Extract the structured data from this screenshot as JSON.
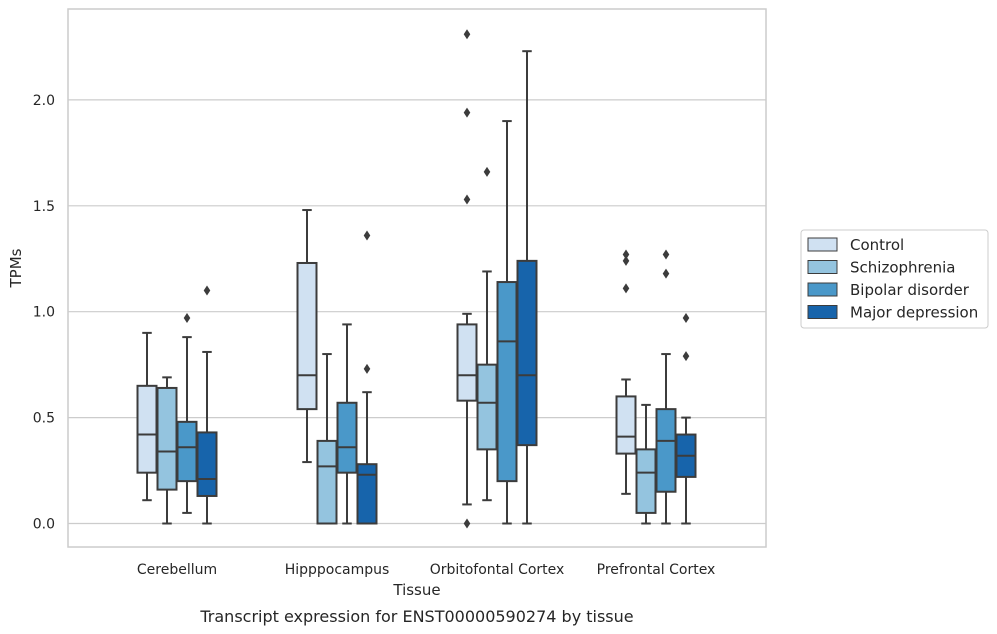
{
  "chart_data": {
    "type": "boxplot",
    "title": "",
    "caption": "Transcript expression for ENST00000590274 by tissue",
    "xlabel": "Tissue",
    "ylabel": "TPMs",
    "ylim": [
      -0.11,
      2.43
    ],
    "yticks": [
      0.0,
      0.5,
      1.0,
      1.5,
      2.0
    ],
    "ytick_labels": [
      "0.0",
      "0.5",
      "1.0",
      "1.5",
      "2.0"
    ],
    "grid": "horizontal",
    "legend_position": "right",
    "categories": [
      "Cerebellum",
      "Hipppocampus",
      "Orbitofontal Cortex",
      "Prefrontal Cortex"
    ],
    "series": [
      {
        "name": "Control",
        "color": "#d0e1f2",
        "boxes": [
          {
            "q1": 0.24,
            "median": 0.42,
            "q3": 0.65,
            "whisker_low": 0.11,
            "whisker_high": 0.9,
            "outliers": []
          },
          {
            "q1": 0.54,
            "median": 0.7,
            "q3": 1.23,
            "whisker_low": 0.29,
            "whisker_high": 1.48,
            "outliers": []
          },
          {
            "q1": 0.58,
            "median": 0.7,
            "q3": 0.94,
            "whisker_low": 0.09,
            "whisker_high": 0.99,
            "outliers": [
              0.0,
              1.53,
              1.94,
              2.31
            ]
          },
          {
            "q1": 0.33,
            "median": 0.41,
            "q3": 0.6,
            "whisker_low": 0.14,
            "whisker_high": 0.68,
            "outliers": [
              1.11,
              1.24,
              1.27
            ]
          }
        ]
      },
      {
        "name": "Schizophrenia",
        "color": "#94c4df",
        "boxes": [
          {
            "q1": 0.16,
            "median": 0.34,
            "q3": 0.64,
            "whisker_low": 0.0,
            "whisker_high": 0.69,
            "outliers": []
          },
          {
            "q1": 0.0,
            "median": 0.27,
            "q3": 0.39,
            "whisker_low": 0.0,
            "whisker_high": 0.8,
            "outliers": []
          },
          {
            "q1": 0.35,
            "median": 0.57,
            "q3": 0.75,
            "whisker_low": 0.11,
            "whisker_high": 1.19,
            "outliers": [
              1.66
            ]
          },
          {
            "q1": 0.05,
            "median": 0.24,
            "q3": 0.35,
            "whisker_low": 0.0,
            "whisker_high": 0.56,
            "outliers": []
          }
        ]
      },
      {
        "name": "Bipolar disorder",
        "color": "#4a98c9",
        "boxes": [
          {
            "q1": 0.2,
            "median": 0.36,
            "q3": 0.48,
            "whisker_low": 0.05,
            "whisker_high": 0.88,
            "outliers": [
              0.97
            ]
          },
          {
            "q1": 0.24,
            "median": 0.36,
            "q3": 0.57,
            "whisker_low": 0.0,
            "whisker_high": 0.94,
            "outliers": []
          },
          {
            "q1": 0.2,
            "median": 0.86,
            "q3": 1.14,
            "whisker_low": 0.0,
            "whisker_high": 1.9,
            "outliers": []
          },
          {
            "q1": 0.15,
            "median": 0.39,
            "q3": 0.54,
            "whisker_low": 0.0,
            "whisker_high": 0.8,
            "outliers": [
              1.18,
              1.27
            ]
          }
        ]
      },
      {
        "name": "Major depression",
        "color": "#1764ab",
        "boxes": [
          {
            "q1": 0.13,
            "median": 0.21,
            "q3": 0.43,
            "whisker_low": 0.0,
            "whisker_high": 0.81,
            "outliers": [
              1.1
            ]
          },
          {
            "q1": 0.0,
            "median": 0.23,
            "q3": 0.28,
            "whisker_low": 0.0,
            "whisker_high": 0.62,
            "outliers": [
              0.73,
              1.36
            ]
          },
          {
            "q1": 0.37,
            "median": 0.7,
            "q3": 1.24,
            "whisker_low": 0.0,
            "whisker_high": 2.23,
            "outliers": []
          },
          {
            "q1": 0.22,
            "median": 0.32,
            "q3": 0.42,
            "whisker_low": 0.0,
            "whisker_high": 0.5,
            "outliers": [
              0.79,
              0.97
            ]
          }
        ]
      }
    ]
  }
}
